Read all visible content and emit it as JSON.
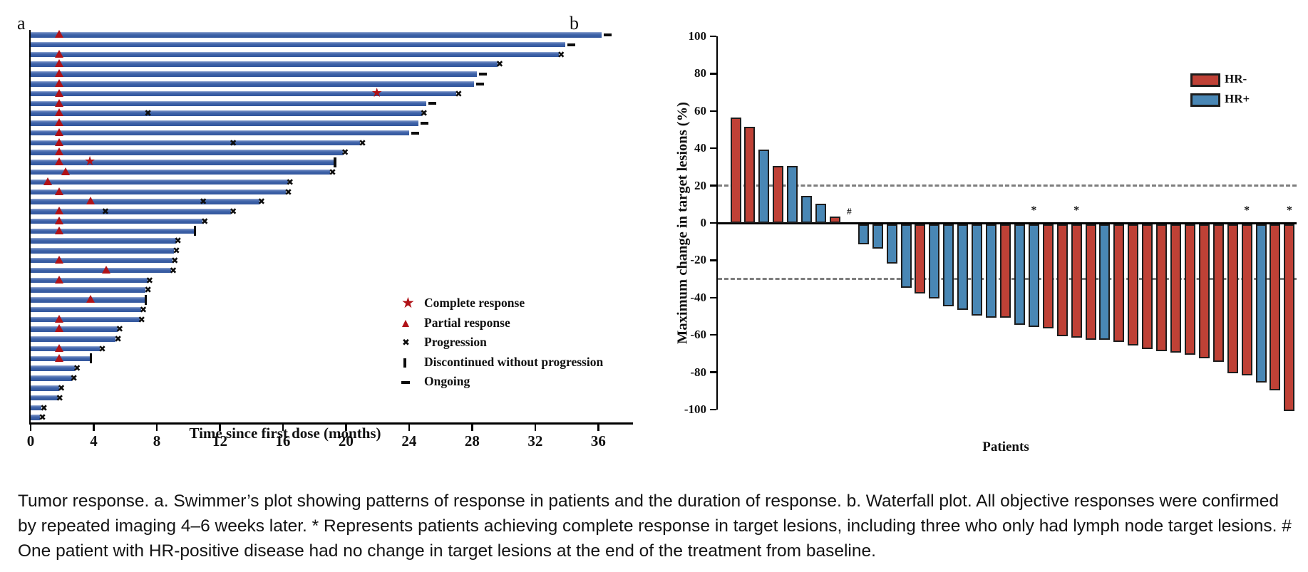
{
  "caption": "Tumor response. a. Swimmer’s plot showing patterns of response in patients and the duration of response. b. Waterfall plot. All objective responses were confirmed by repeated imaging 4–6 weeks later. * Represents patients achieving complete response in target lesions, including three who only had lymph node target lesions. # One patient with HR-positive disease had no change in target lesions at the end of the treatment from baseline.",
  "colors": {
    "swimmer_bar": "#3c61a7",
    "marker_red": "#b01217",
    "hr_negative": "#bf4136",
    "hr_positive": "#4987b5",
    "reference_dash": "#7d7d7d",
    "axis": "#000000"
  },
  "chart_data": [
    {
      "type": "swimmer",
      "panel_label": "a",
      "xlabel": "Time since first dose (months)",
      "x_ticks": [
        0,
        4,
        8,
        12,
        16,
        20,
        24,
        28,
        32,
        36
      ],
      "xlim": [
        0,
        38.2
      ],
      "legend": [
        {
          "symbol": "star",
          "label": "Complete response"
        },
        {
          "symbol": "triangle",
          "label": "Partial response"
        },
        {
          "symbol": "x",
          "label": "Progression"
        },
        {
          "symbol": "bar",
          "label": "Discontinued without progression"
        },
        {
          "symbol": "dash",
          "label": "Ongoing"
        }
      ],
      "patients": [
        {
          "duration": 36.2,
          "partial_response": [
            1.8
          ],
          "complete_response": null,
          "progression": [],
          "status": "ongoing"
        },
        {
          "duration": 33.9,
          "partial_response": [],
          "complete_response": null,
          "progression": [],
          "status": "ongoing"
        },
        {
          "duration": 33.5,
          "partial_response": [
            1.8
          ],
          "complete_response": null,
          "progression": [
            33.7
          ],
          "status": "progression"
        },
        {
          "duration": 29.6,
          "partial_response": [
            1.8
          ],
          "complete_response": null,
          "progression": [
            29.8
          ],
          "status": "progression"
        },
        {
          "duration": 28.3,
          "partial_response": [
            1.8
          ],
          "complete_response": null,
          "progression": [],
          "status": "ongoing"
        },
        {
          "duration": 28.1,
          "partial_response": [
            1.8
          ],
          "complete_response": null,
          "progression": [],
          "status": "ongoing"
        },
        {
          "duration": 27.0,
          "partial_response": [
            1.8
          ],
          "complete_response": 22.0,
          "progression": [
            27.2
          ],
          "status": "progression"
        },
        {
          "duration": 25.1,
          "partial_response": [
            1.8
          ],
          "complete_response": null,
          "progression": [],
          "status": "ongoing"
        },
        {
          "duration": 24.8,
          "partial_response": [
            1.8
          ],
          "complete_response": null,
          "progression": [
            7.5,
            25.0
          ],
          "status": "progression"
        },
        {
          "duration": 24.6,
          "partial_response": [
            1.8
          ],
          "complete_response": null,
          "progression": [],
          "status": "ongoing"
        },
        {
          "duration": 24.0,
          "partial_response": [
            1.8
          ],
          "complete_response": null,
          "progression": [],
          "status": "ongoing"
        },
        {
          "duration": 20.9,
          "partial_response": [
            1.8
          ],
          "complete_response": null,
          "progression": [
            12.9,
            21.1
          ],
          "status": "progression"
        },
        {
          "duration": 19.8,
          "partial_response": [
            1.8
          ],
          "complete_response": null,
          "progression": [
            20.0
          ],
          "status": "progression"
        },
        {
          "duration": 19.3,
          "partial_response": [
            1.8
          ],
          "complete_response": 3.8,
          "progression": [],
          "status": "discontinued"
        },
        {
          "duration": 19.0,
          "partial_response": [
            2.2
          ],
          "complete_response": null,
          "progression": [
            19.2
          ],
          "status": "progression"
        },
        {
          "duration": 16.3,
          "partial_response": [
            1.1
          ],
          "complete_response": null,
          "progression": [
            16.5
          ],
          "status": "progression"
        },
        {
          "duration": 16.2,
          "partial_response": [
            1.8
          ],
          "complete_response": null,
          "progression": [
            16.4
          ],
          "status": "progression"
        },
        {
          "duration": 14.5,
          "partial_response": [
            3.8
          ],
          "complete_response": null,
          "progression": [
            11.0,
            14.7
          ],
          "status": "progression"
        },
        {
          "duration": 12.7,
          "partial_response": [
            1.8
          ],
          "complete_response": null,
          "progression": [
            4.8,
            12.9
          ],
          "status": "progression"
        },
        {
          "duration": 10.9,
          "partial_response": [
            1.8
          ],
          "complete_response": null,
          "progression": [
            11.1
          ],
          "status": "progression"
        },
        {
          "duration": 10.4,
          "partial_response": [
            1.8
          ],
          "complete_response": null,
          "progression": [],
          "status": "discontinued"
        },
        {
          "duration": 9.2,
          "partial_response": [],
          "complete_response": null,
          "progression": [
            9.4
          ],
          "status": "progression"
        },
        {
          "duration": 9.1,
          "partial_response": [],
          "complete_response": null,
          "progression": [
            9.3
          ],
          "status": "progression"
        },
        {
          "duration": 9.0,
          "partial_response": [
            1.8
          ],
          "complete_response": null,
          "progression": [
            9.2
          ],
          "status": "progression"
        },
        {
          "duration": 8.9,
          "partial_response": [
            4.8
          ],
          "complete_response": null,
          "progression": [
            9.1
          ],
          "status": "progression"
        },
        {
          "duration": 7.4,
          "partial_response": [
            1.8
          ],
          "complete_response": null,
          "progression": [
            7.6
          ],
          "status": "progression"
        },
        {
          "duration": 7.3,
          "partial_response": [],
          "complete_response": null,
          "progression": [
            7.5
          ],
          "status": "progression"
        },
        {
          "duration": 7.3,
          "partial_response": [
            3.8
          ],
          "complete_response": null,
          "progression": [],
          "status": "discontinued"
        },
        {
          "duration": 7.0,
          "partial_response": [],
          "complete_response": null,
          "progression": [
            7.2
          ],
          "status": "progression"
        },
        {
          "duration": 6.9,
          "partial_response": [
            1.8
          ],
          "complete_response": null,
          "progression": [
            7.1
          ],
          "status": "progression"
        },
        {
          "duration": 5.5,
          "partial_response": [
            1.8
          ],
          "complete_response": null,
          "progression": [
            5.7
          ],
          "status": "progression"
        },
        {
          "duration": 5.4,
          "partial_response": [],
          "complete_response": null,
          "progression": [
            5.6
          ],
          "status": "progression"
        },
        {
          "duration": 4.4,
          "partial_response": [
            1.8
          ],
          "complete_response": null,
          "progression": [
            4.6
          ],
          "status": "progression"
        },
        {
          "duration": 3.8,
          "partial_response": [
            1.8
          ],
          "complete_response": null,
          "progression": [],
          "status": "discontinued"
        },
        {
          "duration": 2.8,
          "partial_response": [],
          "complete_response": null,
          "progression": [
            3.0
          ],
          "status": "progression"
        },
        {
          "duration": 2.6,
          "partial_response": [],
          "complete_response": null,
          "progression": [
            2.8
          ],
          "status": "progression"
        },
        {
          "duration": 1.8,
          "partial_response": [],
          "complete_response": null,
          "progression": [
            2.0
          ],
          "status": "progression"
        },
        {
          "duration": 1.7,
          "partial_response": [],
          "complete_response": null,
          "progression": [
            1.9
          ],
          "status": "progression"
        },
        {
          "duration": 0.7,
          "partial_response": [],
          "complete_response": null,
          "progression": [
            0.9
          ],
          "status": "progression"
        },
        {
          "duration": 0.6,
          "partial_response": [],
          "complete_response": null,
          "progression": [
            0.8
          ],
          "status": "progression"
        }
      ]
    },
    {
      "type": "waterfall",
      "panel_label": "b",
      "ylabel": "Maximum change in target lesions (%)",
      "xlabel": "Patients",
      "ylim": [
        -100,
        100
      ],
      "y_ticks": [
        100,
        80,
        60,
        40,
        20,
        0,
        -20,
        -40,
        -60,
        -80,
        -100
      ],
      "reference_lines": [
        20,
        -30
      ],
      "legend": [
        {
          "label": "HR-",
          "color": "#bf4136"
        },
        {
          "label": "HR+",
          "color": "#4987b5"
        }
      ],
      "values": [
        56,
        51,
        39,
        30,
        30,
        14,
        10,
        3,
        0,
        -11,
        -13,
        -21,
        -34,
        -37,
        -40,
        -44,
        -46,
        -49,
        -50,
        -50,
        -54,
        -55,
        -56,
        -60,
        -61,
        -62,
        -62,
        -63,
        -65,
        -67,
        -68,
        -69,
        -70,
        -72,
        -74,
        -80,
        -81,
        -85,
        -89,
        -100
      ],
      "groups": [
        "HR-",
        "HR-",
        "HR+",
        "HR-",
        "HR+",
        "HR+",
        "HR+",
        "HR-",
        "HR+",
        "HR+",
        "HR+",
        "HR+",
        "HR+",
        "HR-",
        "HR+",
        "HR+",
        "HR+",
        "HR+",
        "HR+",
        "HR-",
        "HR+",
        "HR+",
        "HR-",
        "HR-",
        "HR-",
        "HR-",
        "HR+",
        "HR-",
        "HR-",
        "HR-",
        "HR-",
        "HR-",
        "HR-",
        "HR-",
        "HR-",
        "HR-",
        "HR-",
        "HR+",
        "HR-",
        "HR-"
      ],
      "marks": {
        "8": "#",
        "21": "*",
        "24": "*",
        "36": "*",
        "39": "*"
      }
    }
  ]
}
